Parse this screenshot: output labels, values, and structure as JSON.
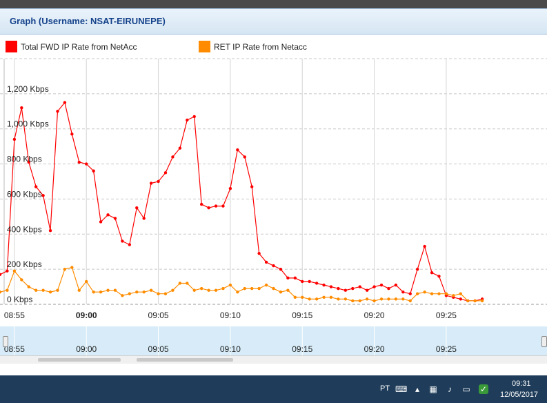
{
  "window": {
    "title": "Graph (Username: NSAT-EIRUNEPE)"
  },
  "chart_data": {
    "type": "line",
    "title": "Graph (Username: NSAT-EIRUNEPE)",
    "xlabel": "",
    "ylabel": "",
    "ylim": [
      0,
      1400
    ],
    "xlim": [
      "08:54",
      "09:32"
    ],
    "y_ticks": [
      "0 Kbps",
      "200 Kbps",
      "400 Kbps",
      "600 Kbps",
      "800 Kbps",
      "1,000 Kbps",
      "1,200 Kbps"
    ],
    "x_ticks": [
      "08:55",
      "09:00",
      "09:05",
      "09:10",
      "09:15",
      "09:20",
      "09:25"
    ],
    "navigator_ticks": [
      "08:55",
      "09:00",
      "09:05",
      "09:10",
      "09:15",
      "09:20",
      "09:25"
    ],
    "legend_position": "top-left",
    "grid": true,
    "series": [
      {
        "name": "Total FWD IP Rate from NetAcc",
        "color": "#ff0000",
        "points": [
          [
            "08:54:00",
            170
          ],
          [
            "08:54:30",
            190
          ],
          [
            "08:55:00",
            940
          ],
          [
            "08:55:30",
            1120
          ],
          [
            "08:56:00",
            810
          ],
          [
            "08:56:30",
            670
          ],
          [
            "08:57:00",
            620
          ],
          [
            "08:57:30",
            420
          ],
          [
            "08:58:00",
            1100
          ],
          [
            "08:58:30",
            1150
          ],
          [
            "08:59:00",
            970
          ],
          [
            "08:59:30",
            810
          ],
          [
            "09:00:00",
            800
          ],
          [
            "09:00:30",
            760
          ],
          [
            "09:01:00",
            470
          ],
          [
            "09:01:30",
            510
          ],
          [
            "09:02:00",
            490
          ],
          [
            "09:02:30",
            360
          ],
          [
            "09:03:00",
            340
          ],
          [
            "09:03:30",
            550
          ],
          [
            "09:04:00",
            490
          ],
          [
            "09:04:30",
            690
          ],
          [
            "09:05:00",
            700
          ],
          [
            "09:05:30",
            750
          ],
          [
            "09:06:00",
            840
          ],
          [
            "09:06:30",
            890
          ],
          [
            "09:07:00",
            1050
          ],
          [
            "09:07:30",
            1070
          ],
          [
            "09:08:00",
            570
          ],
          [
            "09:08:30",
            550
          ],
          [
            "09:09:00",
            560
          ],
          [
            "09:09:30",
            560
          ],
          [
            "09:10:00",
            660
          ],
          [
            "09:10:30",
            880
          ],
          [
            "09:11:00",
            840
          ],
          [
            "09:11:30",
            670
          ],
          [
            "09:12:00",
            290
          ],
          [
            "09:12:30",
            240
          ],
          [
            "09:13:00",
            220
          ],
          [
            "09:13:30",
            200
          ],
          [
            "09:14:00",
            150
          ],
          [
            "09:14:30",
            150
          ],
          [
            "09:15:00",
            130
          ],
          [
            "09:15:30",
            130
          ],
          [
            "09:16:00",
            120
          ],
          [
            "09:16:30",
            110
          ],
          [
            "09:17:00",
            100
          ],
          [
            "09:17:30",
            90
          ],
          [
            "09:18:00",
            80
          ],
          [
            "09:18:30",
            90
          ],
          [
            "09:19:00",
            100
          ],
          [
            "09:19:30",
            80
          ],
          [
            "09:20:00",
            100
          ],
          [
            "09:20:30",
            110
          ],
          [
            "09:21:00",
            90
          ],
          [
            "09:21:30",
            110
          ],
          [
            "09:22:00",
            70
          ],
          [
            "09:22:30",
            60
          ],
          [
            "09:23:00",
            200
          ],
          [
            "09:23:30",
            330
          ],
          [
            "09:24:00",
            180
          ],
          [
            "09:24:30",
            160
          ],
          [
            "09:25:00",
            50
          ],
          [
            "09:25:30",
            40
          ],
          [
            "09:26:00",
            30
          ],
          [
            "09:26:30",
            20
          ],
          [
            "09:27:00",
            20
          ],
          [
            "09:27:30",
            30
          ]
        ]
      },
      {
        "name": "RET IP Rate from Netacc",
        "color": "#ff8c00",
        "points": [
          [
            "08:54:00",
            70
          ],
          [
            "08:54:30",
            80
          ],
          [
            "08:55:00",
            190
          ],
          [
            "08:55:30",
            140
          ],
          [
            "08:56:00",
            100
          ],
          [
            "08:56:30",
            80
          ],
          [
            "08:57:00",
            80
          ],
          [
            "08:57:30",
            70
          ],
          [
            "08:58:00",
            80
          ],
          [
            "08:58:30",
            200
          ],
          [
            "08:59:00",
            210
          ],
          [
            "08:59:30",
            80
          ],
          [
            "09:00:00",
            130
          ],
          [
            "09:00:30",
            70
          ],
          [
            "09:01:00",
            70
          ],
          [
            "09:01:30",
            80
          ],
          [
            "09:02:00",
            80
          ],
          [
            "09:02:30",
            50
          ],
          [
            "09:03:00",
            60
          ],
          [
            "09:03:30",
            70
          ],
          [
            "09:04:00",
            70
          ],
          [
            "09:04:30",
            80
          ],
          [
            "09:05:00",
            60
          ],
          [
            "09:05:30",
            60
          ],
          [
            "09:06:00",
            80
          ],
          [
            "09:06:30",
            120
          ],
          [
            "09:07:00",
            120
          ],
          [
            "09:07:30",
            80
          ],
          [
            "09:08:00",
            90
          ],
          [
            "09:08:30",
            80
          ],
          [
            "09:09:00",
            80
          ],
          [
            "09:09:30",
            90
          ],
          [
            "09:10:00",
            110
          ],
          [
            "09:10:30",
            70
          ],
          [
            "09:11:00",
            90
          ],
          [
            "09:11:30",
            90
          ],
          [
            "09:12:00",
            90
          ],
          [
            "09:12:30",
            110
          ],
          [
            "09:13:00",
            90
          ],
          [
            "09:13:30",
            70
          ],
          [
            "09:14:00",
            80
          ],
          [
            "09:14:30",
            40
          ],
          [
            "09:15:00",
            40
          ],
          [
            "09:15:30",
            30
          ],
          [
            "09:16:00",
            30
          ],
          [
            "09:16:30",
            40
          ],
          [
            "09:17:00",
            40
          ],
          [
            "09:17:30",
            30
          ],
          [
            "09:18:00",
            30
          ],
          [
            "09:18:30",
            20
          ],
          [
            "09:19:00",
            20
          ],
          [
            "09:19:30",
            30
          ],
          [
            "09:20:00",
            20
          ],
          [
            "09:20:30",
            30
          ],
          [
            "09:21:00",
            30
          ],
          [
            "09:21:30",
            30
          ],
          [
            "09:22:00",
            30
          ],
          [
            "09:22:30",
            20
          ],
          [
            "09:23:00",
            60
          ],
          [
            "09:23:30",
            70
          ],
          [
            "09:24:00",
            60
          ],
          [
            "09:24:30",
            60
          ],
          [
            "09:25:00",
            60
          ],
          [
            "09:25:30",
            50
          ],
          [
            "09:26:00",
            60
          ],
          [
            "09:26:30",
            20
          ],
          [
            "09:27:00",
            20
          ],
          [
            "09:27:30",
            20
          ]
        ]
      }
    ]
  },
  "taskbar": {
    "language": "PT",
    "time": "09:31",
    "date": "12/05/2017",
    "tray_icons": [
      "keyboard-icon",
      "chevron-up-icon",
      "network-icon",
      "speaker-icon",
      "monitor-icon",
      "shield-icon"
    ]
  }
}
